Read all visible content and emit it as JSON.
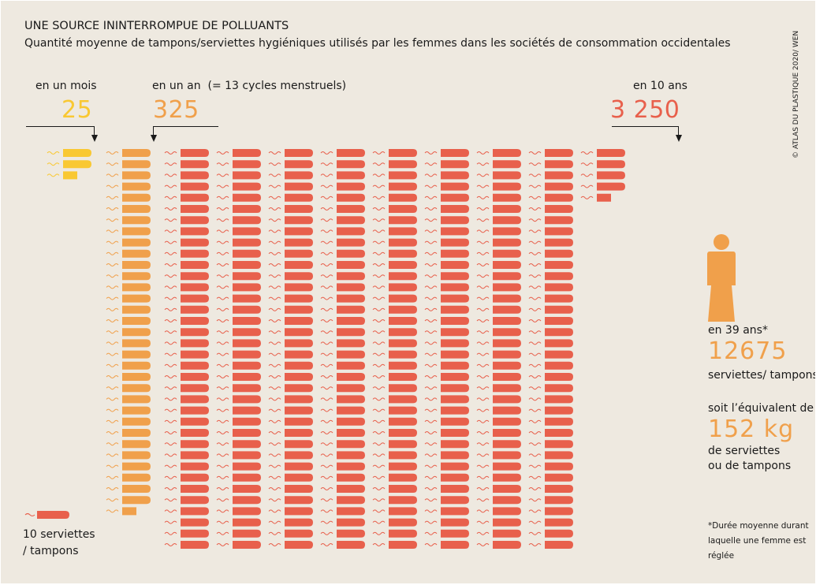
{
  "header": {
    "title": "UNE SOURCE ININTERROMPUE DE POLLUANTS",
    "subtitle": "Quantité moyenne de tampons/serviettes hygiéniques utilisés par les femmes dans les sociétés de consommation occidentales",
    "credit": "© ATLAS DU PLASTIQUE 2020/ WEN"
  },
  "chart_data": {
    "type": "pictogram",
    "unit_label": "10 serviettes / tampons",
    "units_per_icon": 10,
    "groups": [
      {
        "label": "en un mois",
        "value_label": "25",
        "value": 25,
        "color": "#f9c832"
      },
      {
        "label": "en un an",
        "label_note": "(= 13 cycles menstruels)",
        "value_label": "325",
        "value": 325,
        "color": "#f0a04b"
      },
      {
        "label": "en 10 ans",
        "value_label": "3 250",
        "value": 3250,
        "color": "#e8604c"
      }
    ]
  },
  "sidebar": {
    "life_label": "en 39 ans*",
    "life_total": "12675",
    "life_total_unit": "serviettes/ tampons",
    "equiv_label": "soit l’équivalent de",
    "weight": "152 kg",
    "weight_unit_line1": "de serviettes",
    "weight_unit_line2": "ou de tampons"
  },
  "legend": {
    "line1": "10 serviettes",
    "line2": "/ tampons"
  },
  "footnote": {
    "line1": "*Durée moyenne durant",
    "line2": "laquelle une femme est",
    "line3": "réglée"
  }
}
